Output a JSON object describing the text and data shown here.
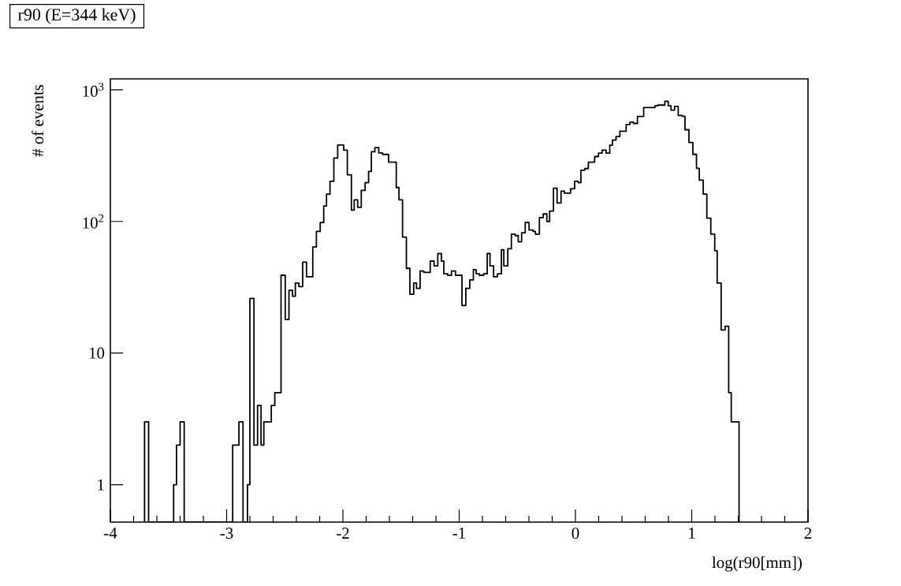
{
  "chart_data": {
    "type": "histogram",
    "title": "r90 (E=344 keV)",
    "xlabel": "log(r90[mm])",
    "ylabel": "# of events",
    "log": "y",
    "color": "#000000",
    "bins": [
      -3.706,
      -3.671,
      -3.456,
      -3.431,
      -3.4,
      -3.365,
      -2.948,
      -2.894,
      -2.859,
      -2.821,
      -2.8,
      -2.765,
      -2.734,
      -2.704,
      -2.68,
      -2.616,
      -2.586,
      -2.532,
      -2.496,
      -2.464,
      -2.433,
      -2.409,
      -2.379,
      -2.346,
      -2.313,
      -2.259,
      -2.228,
      -2.195,
      -2.165,
      -2.141,
      -2.111,
      -2.078,
      -2.045,
      -1.993,
      -1.962,
      -1.927,
      -1.903,
      -1.873,
      -1.842,
      -1.809,
      -1.779,
      -1.755,
      -1.725,
      -1.692,
      -1.659,
      -1.607,
      -1.541,
      -1.518,
      -1.487,
      -1.454,
      -1.424,
      -1.391,
      -1.367,
      -1.336,
      -1.304,
      -1.249,
      -1.216,
      -1.184,
      -1.153,
      -1.132,
      -1.099,
      -1.066,
      -1.032,
      -0.976,
      -0.943,
      -0.909,
      -0.878,
      -0.854,
      -0.826,
      -0.79,
      -0.759,
      -0.735,
      -0.704,
      -0.671,
      -0.637,
      -0.616,
      -0.582,
      -0.551,
      -0.518,
      -0.492,
      -0.463,
      -0.432,
      -0.399,
      -0.365,
      -0.344,
      -0.31,
      -0.277,
      -0.246,
      -0.222,
      -0.189,
      -0.158,
      -0.124,
      -0.095,
      -0.042,
      -0.007,
      0.024,
      0.047,
      0.08,
      0.111,
      0.165,
      0.198,
      0.229,
      0.264,
      0.295,
      0.318,
      0.349,
      0.382,
      0.436,
      0.469,
      0.5,
      0.533,
      0.587,
      0.684,
      0.708,
      0.769,
      0.798,
      0.822,
      0.853,
      0.884,
      0.918,
      0.942,
      0.976,
      1.01,
      1.041,
      1.065,
      1.099,
      1.13,
      1.164,
      1.198,
      1.219,
      1.253,
      1.287,
      1.318,
      1.34,
      1.407
    ],
    "values": [
      3,
      null,
      1,
      2,
      3,
      null,
      2,
      3,
      null,
      1,
      26,
      2,
      4,
      2,
      3,
      4,
      5,
      39,
      18,
      30,
      27,
      34,
      32,
      49,
      38,
      64,
      84,
      98,
      131,
      161,
      202,
      303,
      380,
      348,
      226,
      122,
      146,
      128,
      172,
      197,
      240,
      338,
      364,
      331,
      323,
      282,
      181,
      146,
      76,
      44,
      28,
      34,
      31,
      42,
      41,
      50,
      46,
      57,
      50,
      40,
      39,
      42,
      39,
      23,
      31,
      36,
      43,
      40,
      39,
      40,
      57,
      46,
      38,
      40,
      61,
      46,
      62,
      80,
      78,
      70,
      82,
      98,
      86,
      84,
      80,
      107,
      114,
      100,
      120,
      179,
      138,
      170,
      164,
      177,
      202,
      197,
      245,
      252,
      282,
      311,
      330,
      348,
      330,
      379,
      415,
      441,
      484,
      545,
      568,
      555,
      627,
      733,
      756,
      765,
      819,
      756,
      700,
      748,
      638,
      630,
      497,
      398,
      323,
      253,
      206,
      161,
      106,
      80,
      60,
      34,
      15,
      16,
      5,
      3
    ],
    "xlim": [
      -4,
      2
    ],
    "xticks": [
      -4,
      -3,
      -2,
      -1,
      0,
      1,
      2
    ],
    "ylim": [
      0.52,
      1210
    ],
    "yticks": [
      1,
      10,
      {
        "value": 100,
        "label": "10$^{2}$"
      },
      {
        "value": 1000,
        "label": "10$^{3}$"
      }
    ]
  }
}
